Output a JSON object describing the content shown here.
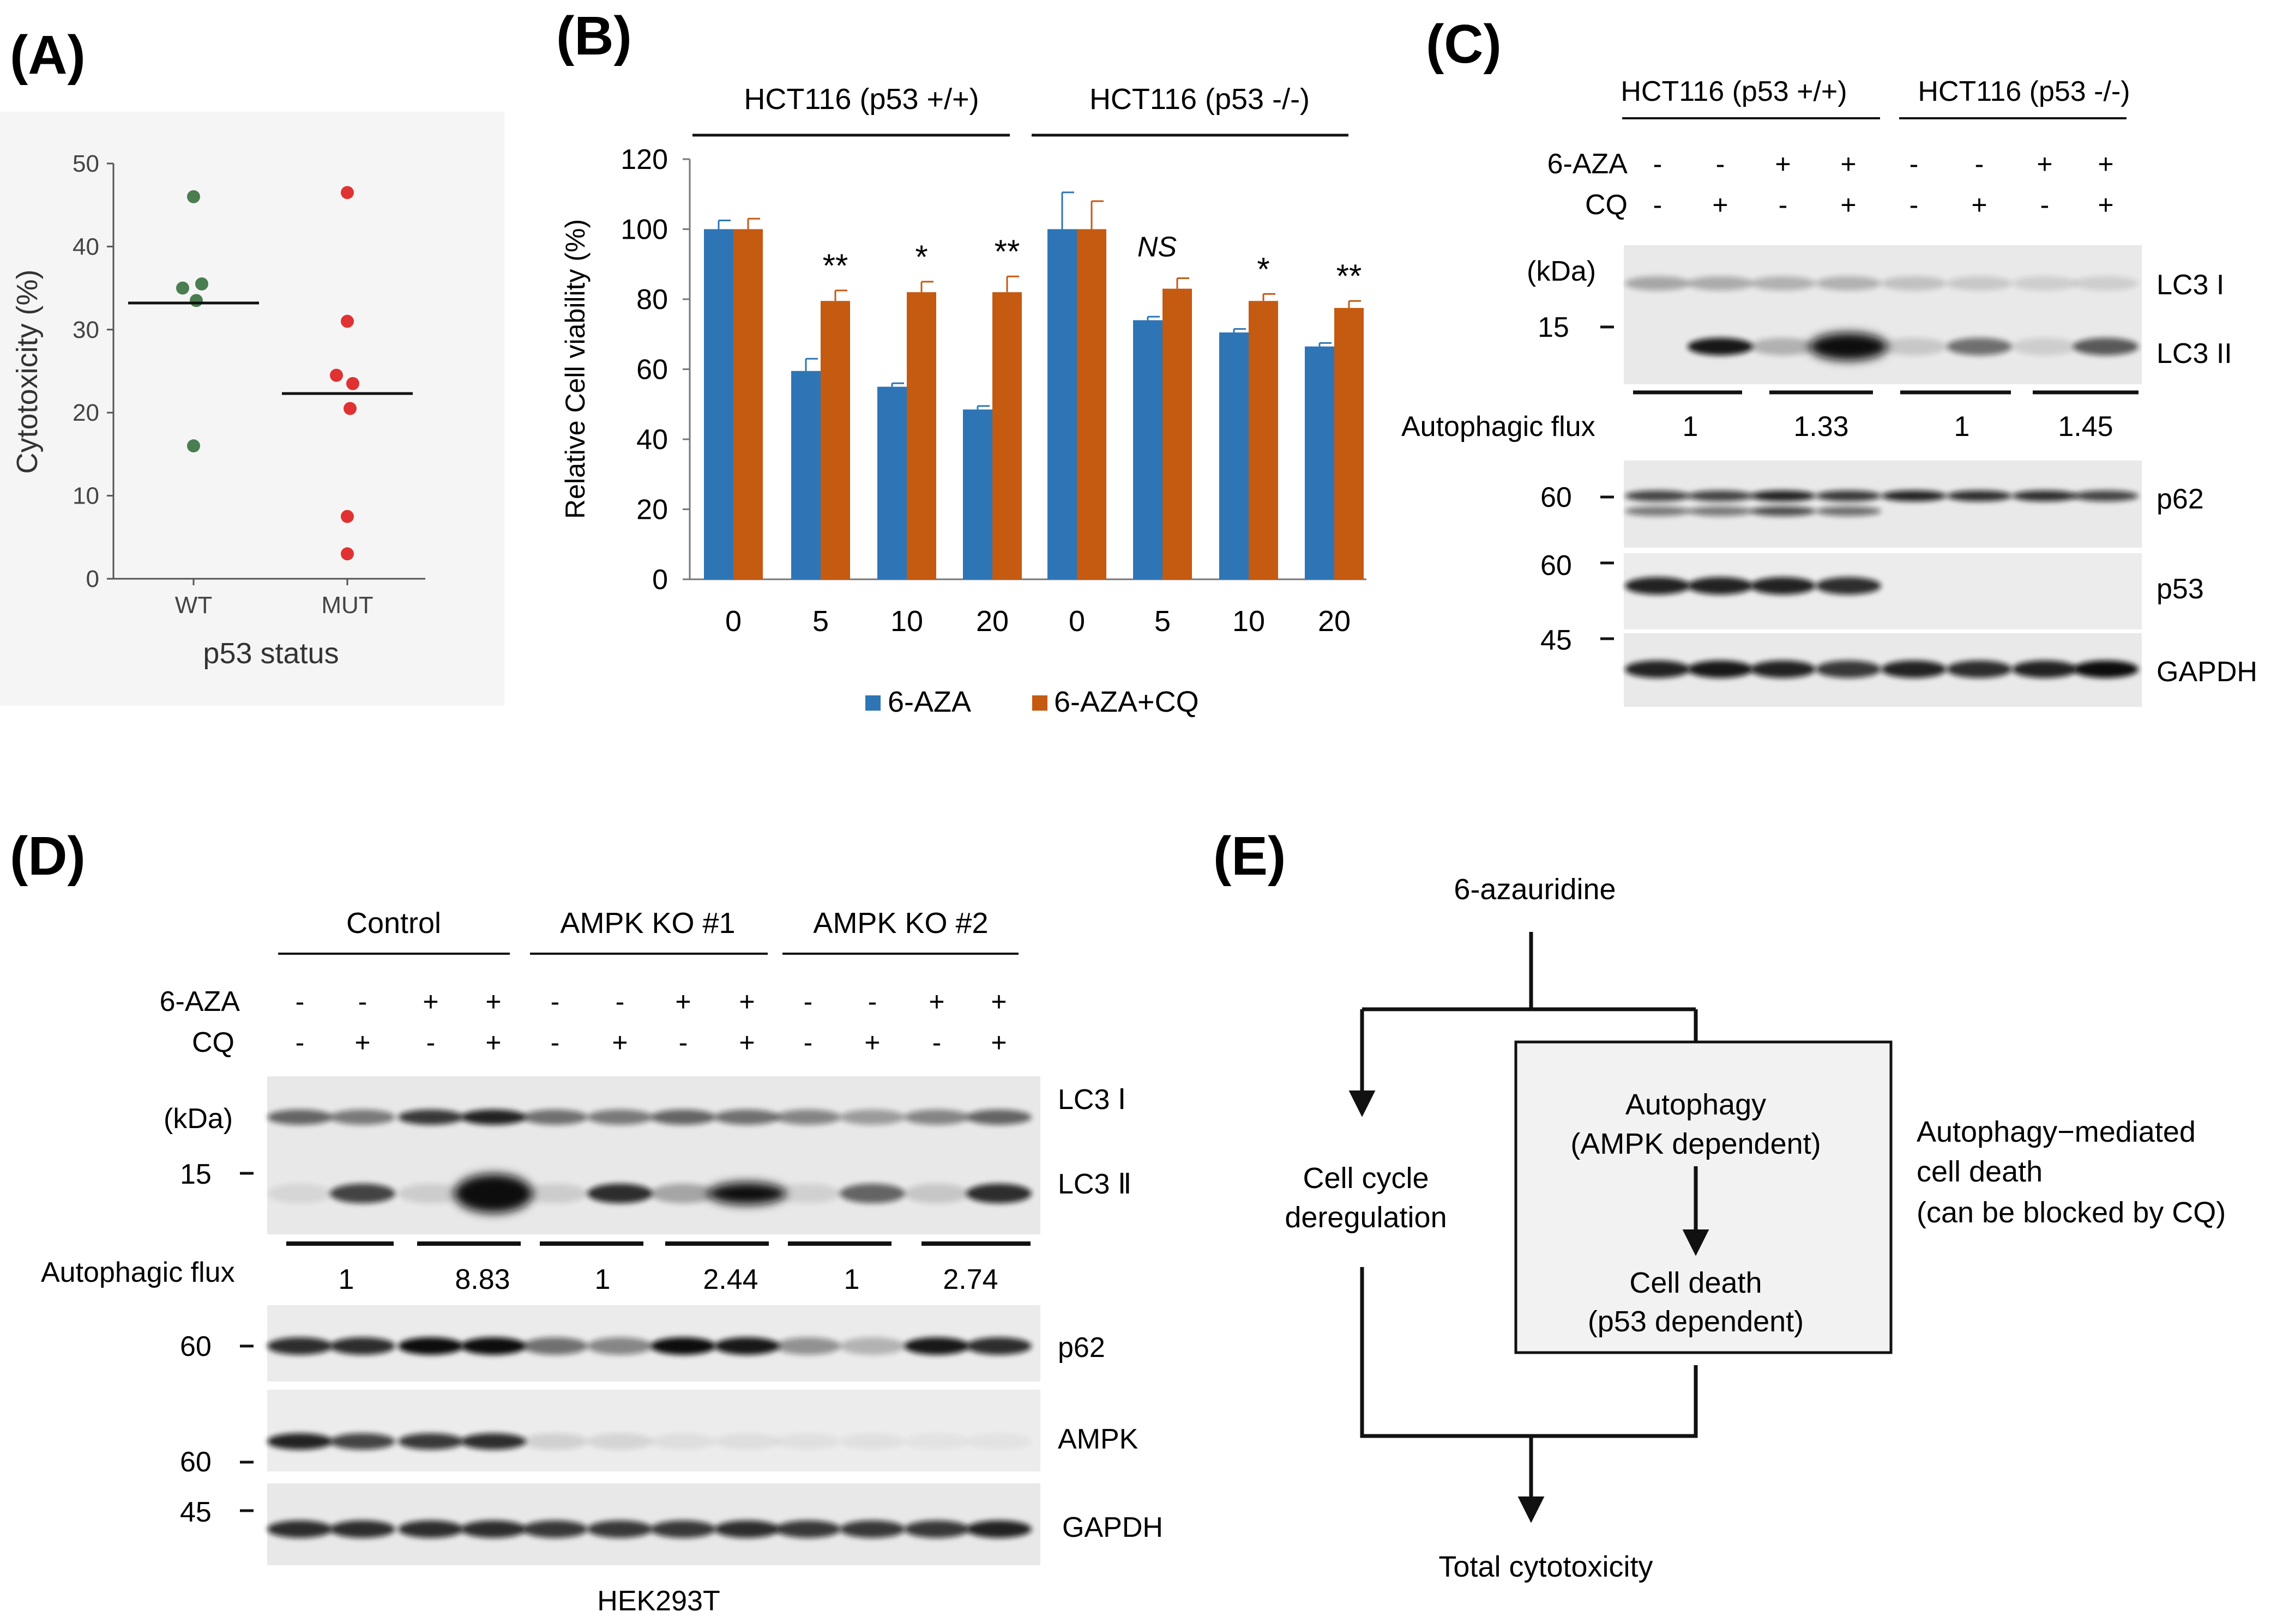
{
  "panel_labels": {
    "a": "(A)",
    "b": "(B)",
    "c": "(C)",
    "d": "(D)",
    "e": "(E)"
  },
  "colors": {
    "blue": "#2e75b6",
    "orange": "#c55a11",
    "green": "#4a7d4f",
    "red": "#e03232"
  },
  "chart_data": [
    {
      "id": "A",
      "type": "scatter",
      "title": "",
      "xlabel": "p53 status",
      "ylabel": "Cytotoxicity (%)",
      "ylim": [
        0,
        50
      ],
      "yticks": [
        "0",
        "10",
        "20",
        "30",
        "40",
        "50"
      ],
      "categories": [
        "WT",
        "MUT"
      ],
      "series": [
        {
          "name": "WT",
          "color": "#4a7d4f",
          "values": [
            46,
            35.5,
            35,
            33.5,
            16
          ],
          "jitter": [
            0,
            0.15,
            -0.2,
            0.05,
            0
          ],
          "mean": 33.2
        },
        {
          "name": "MUT",
          "color": "#e03232",
          "values": [
            46.5,
            31,
            24.5,
            23.5,
            20.5,
            7.5,
            3
          ],
          "jitter": [
            0,
            0,
            -0.2,
            0.1,
            0.05,
            0,
            0
          ],
          "mean": 22.3
        }
      ]
    },
    {
      "id": "B",
      "type": "bar",
      "ylabel": "Relative Cell viability (%)",
      "ylim": [
        0,
        120
      ],
      "yticks": [
        "0",
        "20",
        "40",
        "60",
        "80",
        "100",
        "120"
      ],
      "groups": [
        "HCT116 (p53 +/+)",
        "HCT116 (p53 -/-)"
      ],
      "categories": [
        "0",
        "5",
        "10",
        "20",
        "0",
        "5",
        "10",
        "20"
      ],
      "series": [
        {
          "name": "6-AZA",
          "color": "#2e75b6",
          "values": [
            100,
            59.5,
            55,
            48.5,
            100,
            74,
            70.5,
            66.5
          ],
          "errors": [
            2.5,
            3.5,
            1,
            1,
            10.5,
            1,
            1,
            1
          ]
        },
        {
          "name": "6-AZA+CQ",
          "color": "#c55a11",
          "values": [
            100,
            79.5,
            82,
            82,
            100,
            83,
            79.5,
            77.5
          ],
          "errors": [
            3,
            3,
            3,
            4.5,
            8,
            3,
            2,
            2
          ]
        }
      ],
      "significance": [
        "",
        "**",
        "*",
        "**",
        "",
        "NS",
        "*",
        "**"
      ]
    }
  ],
  "panel_c": {
    "groups": [
      "HCT116 (p53 +/+)",
      "HCT116 (p53 -/-)"
    ],
    "row_labels": [
      "6-AZA",
      "CQ"
    ],
    "aza": [
      "-",
      "-",
      "+",
      "+",
      "-",
      "-",
      "+",
      "+"
    ],
    "cq": [
      "-",
      "+",
      "-",
      "+",
      "-",
      "+",
      "-",
      "+"
    ],
    "kda_label": "(kDa)",
    "markers": [
      "15",
      "60",
      "60",
      "45"
    ],
    "blot_labels": [
      "LC3 I",
      "LC3 II",
      "p62",
      "p53",
      "GAPDH"
    ],
    "flux_label": "Autophagic flux",
    "flux_values": [
      "1",
      "1.33",
      "1",
      "1.45"
    ]
  },
  "panel_d": {
    "groups": [
      "Control",
      "AMPK KO #1",
      "AMPK KO #2"
    ],
    "row_labels": [
      "6-AZA",
      "CQ"
    ],
    "aza": [
      "-",
      "-",
      "+",
      "+",
      "-",
      "-",
      "+",
      "+",
      "-",
      "-",
      "+",
      "+"
    ],
    "cq": [
      "-",
      "+",
      "-",
      "+",
      "-",
      "+",
      "-",
      "+",
      "-",
      "+",
      "-",
      "+"
    ],
    "kda_label": "(kDa)",
    "markers": [
      "15",
      "60",
      "60",
      "45"
    ],
    "blot_labels": [
      "LC3 Ⅰ",
      "LC3 Ⅱ",
      "p62",
      "AMPK",
      "GAPDH"
    ],
    "flux_label": "Autophagic flux",
    "flux_values": [
      "1",
      "8.83",
      "1",
      "2.44",
      "1",
      "2.74"
    ],
    "cell_line": "HEK293T"
  },
  "panel_e": {
    "start": "6-azauridine",
    "cycle": [
      "Cell cycle",
      "deregulation"
    ],
    "autophagy": [
      "Autophagy",
      "(AMPK dependent)"
    ],
    "death": [
      "Cell death",
      "(p53 dependent)"
    ],
    "side_note": [
      "Autophagy−mediated",
      "cell death",
      "(can be blocked by CQ)"
    ],
    "end": "Total cytotoxicity"
  }
}
